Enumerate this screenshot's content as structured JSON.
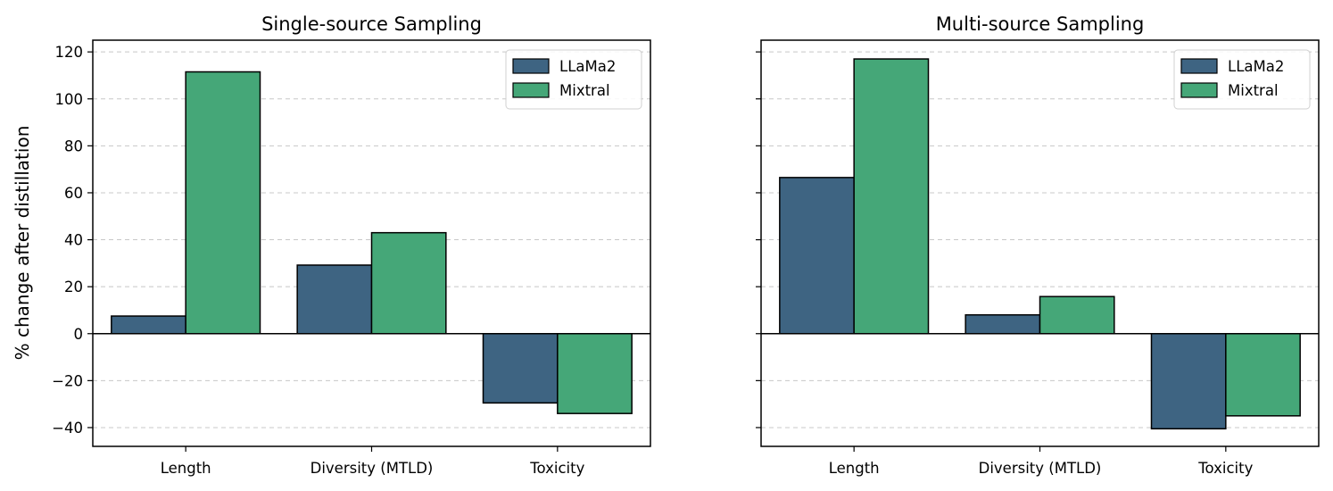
{
  "chart_data": [
    {
      "type": "bar",
      "title": "Single-source Sampling",
      "xlabel": "",
      "ylabel": "% change after distillation",
      "categories": [
        "Length",
        "Diversity (MTLD)",
        "Toxicity"
      ],
      "series": [
        {
          "name": "LLaMa2",
          "values": [
            7.5,
            29.2,
            -29.5
          ]
        },
        {
          "name": "Mixtral",
          "values": [
            111.5,
            43.0,
            -34.0
          ]
        }
      ],
      "ylim": [
        -48,
        125
      ],
      "yticks": [
        -40,
        -20,
        0,
        20,
        40,
        60,
        80,
        100,
        120
      ],
      "grid": "y-dashed",
      "legend_position": "top-right",
      "colors": {
        "LLaMa2": "#3e6482",
        "Mixtral": "#45a778"
      }
    },
    {
      "type": "bar",
      "title": "Multi-source Sampling",
      "xlabel": "",
      "ylabel": "",
      "categories": [
        "Length",
        "Diversity (MTLD)",
        "Toxicity"
      ],
      "series": [
        {
          "name": "LLaMa2",
          "values": [
            66.5,
            8.0,
            -40.5
          ]
        },
        {
          "name": "Mixtral",
          "values": [
            117.0,
            15.8,
            -35.0
          ]
        }
      ],
      "ylim": [
        -48,
        125
      ],
      "yticks": [
        -40,
        -20,
        0,
        20,
        40,
        60,
        80,
        100,
        120
      ],
      "grid": "y-dashed",
      "legend_position": "top-right",
      "colors": {
        "LLaMa2": "#3e6482",
        "Mixtral": "#45a778"
      }
    }
  ]
}
